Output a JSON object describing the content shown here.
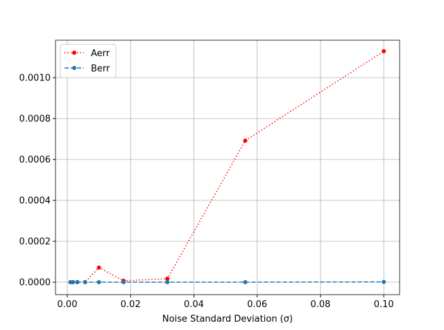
{
  "chart_data": {
    "type": "line",
    "x_label": "Noise Standard Deviation (σ)",
    "x": [
      0.001,
      0.001778,
      0.003162,
      0.005623,
      0.01,
      0.01778,
      0.03162,
      0.05623,
      0.1
    ],
    "series": [
      {
        "name": "Aerr",
        "color": "#ff0000",
        "style": "dotted",
        "values": [
          1e-07,
          2e-07,
          3e-07,
          5e-07,
          7.12e-05,
          6.8e-06,
          1.7e-05,
          0.000692,
          0.001129
        ]
      },
      {
        "name": "Berr",
        "color": "#1f77b4",
        "style": "dashed",
        "values": [
          0,
          0,
          0,
          0,
          0,
          0,
          0,
          1e-07,
          1.3e-06
        ]
      }
    ],
    "xlim": [
      -0.00373,
      0.105
    ],
    "ylim": [
      -6.1e-05,
      0.001183
    ],
    "xticks": [
      {
        "value": 0,
        "label": "0.00"
      },
      {
        "value": 0.02,
        "label": "0.02"
      },
      {
        "value": 0.04,
        "label": "0.04"
      },
      {
        "value": 0.06,
        "label": "0.06"
      },
      {
        "value": 0.08,
        "label": "0.08"
      },
      {
        "value": 0.1,
        "label": "0.10"
      }
    ],
    "yticks": [
      {
        "value": 0,
        "label": "0.0000"
      },
      {
        "value": 0.0002,
        "label": "0.0002"
      },
      {
        "value": 0.0004,
        "label": "0.0004"
      },
      {
        "value": 0.0006,
        "label": "0.0006"
      },
      {
        "value": 0.0008,
        "label": "0.0008"
      },
      {
        "value": 0.001,
        "label": "0.0010"
      }
    ],
    "grid": true,
    "legend": "upper-left"
  }
}
